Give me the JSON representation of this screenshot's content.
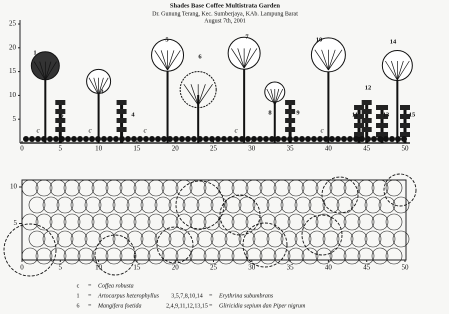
{
  "header": {
    "title": "Shades Base Coffee Multistrata Garden",
    "location": "Dr. Gunung Terang, Kec. Sumberjaya, KAb. Lampung Barat",
    "date": "August 7th, 2001"
  },
  "profile": {
    "yticks": [
      5,
      10,
      15,
      20,
      25
    ],
    "xticks": [
      0,
      5,
      10,
      15,
      20,
      25,
      30,
      35,
      40,
      45,
      50
    ],
    "coffee_marker": "c",
    "trees": [
      "1",
      "2",
      "3",
      "4",
      "5",
      "6",
      "7",
      "8",
      "9",
      "10",
      "11",
      "12",
      "13",
      "14",
      "15"
    ]
  },
  "plan": {
    "yticks": [
      5,
      10
    ],
    "xticks": [
      0,
      5,
      10,
      15,
      20,
      25,
      30,
      35,
      40,
      45,
      50
    ]
  },
  "legend": {
    "left": [
      {
        "symbol": "c",
        "eq": "=",
        "name": "Coffea robusta"
      },
      {
        "symbol": "1",
        "eq": "=",
        "name": "Artocarpus heterophyllus"
      },
      {
        "symbol": "6",
        "eq": "=",
        "name": "Mangifera foetida"
      }
    ],
    "right": [
      {
        "symbol": "3,5,7,8,10,14",
        "eq": "=",
        "name": "Erythrina subumbrans"
      },
      {
        "symbol": "2,4,9,11,12,13,15",
        "eq": "=",
        "name": "Gliricidia sepium dan Piper nigrum"
      }
    ]
  }
}
